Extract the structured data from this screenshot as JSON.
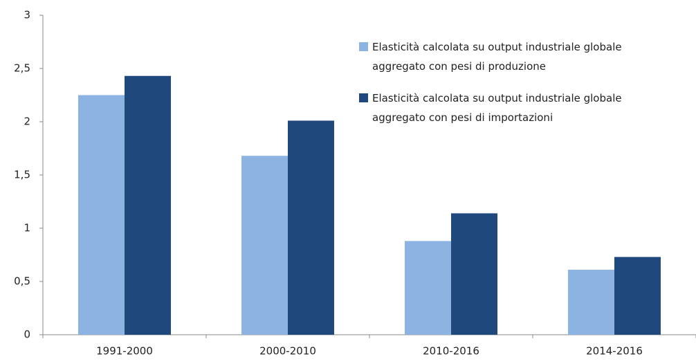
{
  "chart_data": {
    "type": "bar",
    "categories": [
      "1991-2000",
      "2000-2010",
      "2010-2016",
      "2014-2016"
    ],
    "series": [
      {
        "name": "Elasticità calcolata su output industriale globale aggregato con pesi di produzione",
        "color": "#8db3e2",
        "values": [
          2.25,
          1.68,
          0.88,
          0.61
        ]
      },
      {
        "name": "Elasticità calcolata su output industriale globale aggregato con pesi di importazioni",
        "color": "#1f497d",
        "values": [
          2.43,
          2.01,
          1.14,
          0.73
        ]
      }
    ],
    "ylim": [
      0,
      3
    ],
    "yticks": [
      0,
      {
        "value": 0.5,
        "label": "0,5"
      },
      1,
      {
        "value": 1.5,
        "label": "1,5"
      },
      2,
      {
        "value": 2.5,
        "label": "2,5"
      },
      3
    ],
    "grid": false,
    "legend": "top-right"
  }
}
